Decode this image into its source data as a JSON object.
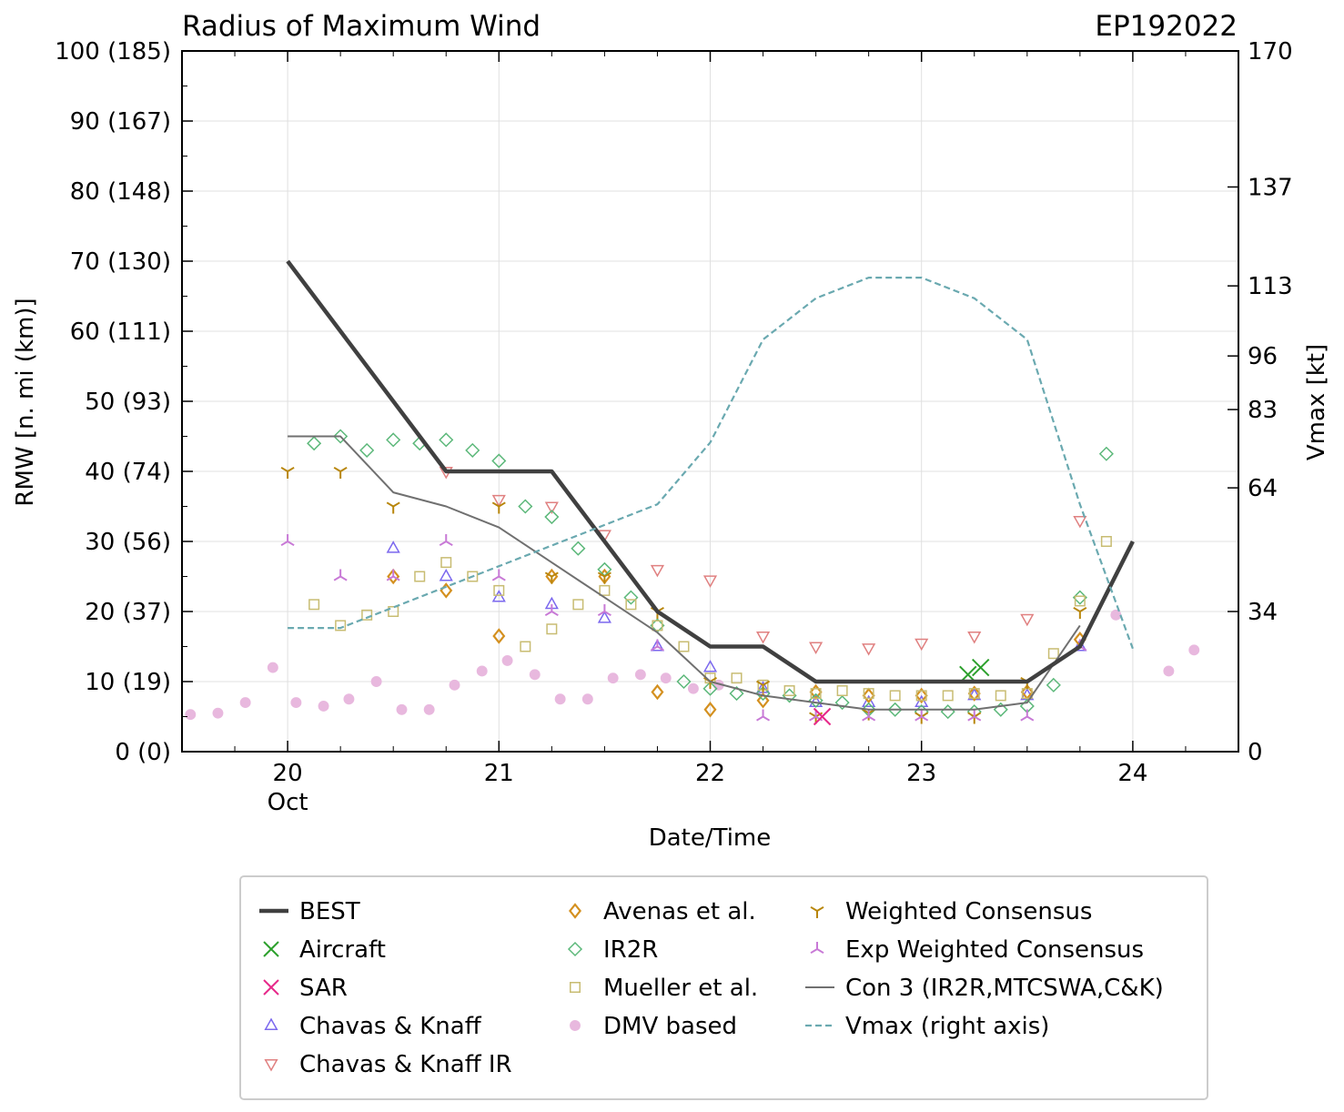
{
  "chart_data": {
    "type": "scatter",
    "title": "Radius of Maximum Wind",
    "storm_id": "EP192022",
    "xlabel": "Date/Time",
    "ylabel": "RMW [n. mi (km)]",
    "y2label": "Vmax [kt]",
    "xlim": [
      19.5,
      24.5
    ],
    "ylim": [
      0,
      100
    ],
    "y2lim": [
      0,
      170
    ],
    "x_ticks": [
      {
        "value": 20,
        "label": "20",
        "sublabel": "Oct"
      },
      {
        "value": 21,
        "label": "21",
        "sublabel": ""
      },
      {
        "value": 22,
        "label": "22",
        "sublabel": ""
      },
      {
        "value": 23,
        "label": "23",
        "sublabel": ""
      },
      {
        "value": 24,
        "label": "24",
        "sublabel": ""
      }
    ],
    "y_ticks": [
      {
        "value": 0,
        "label": "0 (0)"
      },
      {
        "value": 10,
        "label": "10 (19)"
      },
      {
        "value": 20,
        "label": "20 (37)"
      },
      {
        "value": 30,
        "label": "30 (56)"
      },
      {
        "value": 40,
        "label": "40 (74)"
      },
      {
        "value": 50,
        "label": "50 (93)"
      },
      {
        "value": 60,
        "label": "60 (111)"
      },
      {
        "value": 70,
        "label": "70 (130)"
      },
      {
        "value": 80,
        "label": "80 (148)"
      },
      {
        "value": 90,
        "label": "90 (167)"
      },
      {
        "value": 100,
        "label": "100 (185)"
      }
    ],
    "y2_ticks": [
      {
        "value": 0,
        "label": "0"
      },
      {
        "value": 34,
        "label": "34"
      },
      {
        "value": 64,
        "label": "64"
      },
      {
        "value": 83,
        "label": "83"
      },
      {
        "value": 96,
        "label": "96"
      },
      {
        "value": 113,
        "label": "113"
      },
      {
        "value": 137,
        "label": "137"
      },
      {
        "value": 170,
        "label": "170"
      }
    ],
    "grid": true,
    "legend_placement": "below",
    "series": [
      {
        "name": "BEST",
        "marker": "line",
        "color": "#404040",
        "points": [
          [
            20.0,
            70
          ],
          [
            20.75,
            40
          ],
          [
            21.25,
            40
          ],
          [
            21.75,
            20
          ],
          [
            22.0,
            15
          ],
          [
            22.25,
            15
          ],
          [
            22.5,
            10
          ],
          [
            23.5,
            10
          ],
          [
            23.75,
            15
          ],
          [
            24.0,
            30
          ]
        ]
      },
      {
        "name": "Aircraft",
        "marker": "x",
        "color": "#2ca02c",
        "points": [
          [
            23.22,
            11
          ],
          [
            23.28,
            12
          ]
        ]
      },
      {
        "name": "SAR",
        "marker": "x",
        "color": "#e7298a",
        "points": [
          [
            22.53,
            5
          ]
        ]
      },
      {
        "name": "Chavas & Knaff",
        "marker": "triangle-up",
        "color": "#7b68ee",
        "points": [
          [
            20.5,
            29
          ],
          [
            20.75,
            25
          ],
          [
            21.0,
            22
          ],
          [
            21.25,
            21
          ],
          [
            21.5,
            19
          ],
          [
            21.75,
            15
          ],
          [
            22.0,
            12
          ],
          [
            22.25,
            9
          ],
          [
            22.5,
            7
          ],
          [
            22.75,
            7
          ],
          [
            23.0,
            7
          ],
          [
            23.25,
            8
          ],
          [
            23.5,
            8
          ],
          [
            23.75,
            15
          ]
        ]
      },
      {
        "name": "Chavas & Knaff IR",
        "marker": "triangle-down",
        "color": "#e08080",
        "points": [
          [
            20.75,
            40
          ],
          [
            21.0,
            36
          ],
          [
            21.25,
            35
          ],
          [
            21.5,
            31
          ],
          [
            21.75,
            26
          ],
          [
            22.0,
            24.5
          ],
          [
            22.25,
            16.5
          ],
          [
            22.5,
            15
          ],
          [
            22.75,
            14.8
          ],
          [
            23.0,
            15.5
          ],
          [
            23.25,
            16.5
          ],
          [
            23.5,
            19
          ],
          [
            23.75,
            33
          ]
        ]
      },
      {
        "name": "Avenas et al.",
        "marker": "diamond",
        "color": "#d4901f",
        "points": [
          [
            20.5,
            25
          ],
          [
            20.75,
            23
          ],
          [
            21.0,
            16.5
          ],
          [
            21.25,
            25
          ],
          [
            21.5,
            25
          ],
          [
            21.75,
            8.5
          ],
          [
            22.0,
            6
          ],
          [
            22.25,
            7.3
          ],
          [
            22.5,
            8.5
          ],
          [
            22.75,
            8
          ],
          [
            23.0,
            8
          ],
          [
            23.25,
            8.3
          ],
          [
            23.5,
            8.5
          ],
          [
            23.75,
            16
          ]
        ]
      },
      {
        "name": "IR2R",
        "marker": "diamond-open",
        "color": "#5cb87a",
        "points": [
          [
            20.125,
            44
          ],
          [
            20.25,
            45
          ],
          [
            20.375,
            43
          ],
          [
            20.5,
            44.5
          ],
          [
            20.625,
            44
          ],
          [
            20.75,
            44.5
          ],
          [
            20.875,
            43
          ],
          [
            21.0,
            41.5
          ],
          [
            21.125,
            35
          ],
          [
            21.25,
            33.5
          ],
          [
            21.375,
            29
          ],
          [
            21.5,
            26
          ],
          [
            21.625,
            22
          ],
          [
            21.75,
            18
          ],
          [
            21.875,
            10
          ],
          [
            22.0,
            9
          ],
          [
            22.125,
            8.3
          ],
          [
            22.25,
            8.3
          ],
          [
            22.375,
            8
          ],
          [
            22.5,
            7.3
          ],
          [
            22.625,
            7
          ],
          [
            22.75,
            6
          ],
          [
            22.875,
            6
          ],
          [
            23.0,
            5.7
          ],
          [
            23.125,
            5.7
          ],
          [
            23.25,
            5.7
          ],
          [
            23.375,
            6
          ],
          [
            23.5,
            6.5
          ],
          [
            23.625,
            9.5
          ],
          [
            23.75,
            22
          ],
          [
            23.875,
            42.5
          ]
        ]
      },
      {
        "name": "Mueller et al.",
        "marker": "square",
        "color": "#c8bc72",
        "points": [
          [
            20.125,
            21
          ],
          [
            20.25,
            18
          ],
          [
            20.375,
            19.5
          ],
          [
            20.5,
            20
          ],
          [
            20.625,
            25
          ],
          [
            20.75,
            27
          ],
          [
            20.875,
            25
          ],
          [
            21.0,
            23
          ],
          [
            21.125,
            15
          ],
          [
            21.25,
            17.5
          ],
          [
            21.375,
            21
          ],
          [
            21.5,
            23
          ],
          [
            21.625,
            21
          ],
          [
            21.75,
            18
          ],
          [
            21.875,
            15
          ],
          [
            22.0,
            10.5
          ],
          [
            22.125,
            10.5
          ],
          [
            22.25,
            9.5
          ],
          [
            22.375,
            8.7
          ],
          [
            22.5,
            8.3
          ],
          [
            22.625,
            8.7
          ],
          [
            22.75,
            8.3
          ],
          [
            22.875,
            8
          ],
          [
            23.0,
            8
          ],
          [
            23.125,
            8
          ],
          [
            23.25,
            8.3
          ],
          [
            23.375,
            8
          ],
          [
            23.5,
            8.3
          ],
          [
            23.625,
            14
          ],
          [
            23.75,
            21.5
          ],
          [
            23.875,
            30
          ]
        ]
      },
      {
        "name": "DMV based",
        "marker": "circle",
        "color": "#e8b8de",
        "points": [
          [
            19.54,
            5.3
          ],
          [
            19.67,
            5.5
          ],
          [
            19.8,
            7
          ],
          [
            19.93,
            12
          ],
          [
            20.04,
            7
          ],
          [
            20.17,
            6.5
          ],
          [
            20.29,
            7.5
          ],
          [
            20.42,
            10
          ],
          [
            20.54,
            6
          ],
          [
            20.67,
            6
          ],
          [
            20.79,
            9.5
          ],
          [
            20.92,
            11.5
          ],
          [
            21.04,
            13
          ],
          [
            21.17,
            11
          ],
          [
            21.29,
            7.5
          ],
          [
            21.42,
            7.5
          ],
          [
            21.54,
            10.5
          ],
          [
            21.67,
            11
          ],
          [
            21.79,
            10.5
          ],
          [
            21.92,
            9
          ],
          [
            22.04,
            9.5
          ],
          [
            23.92,
            19.5
          ],
          [
            24.17,
            11.5
          ],
          [
            24.29,
            14.5
          ]
        ]
      },
      {
        "name": "Weighted Consensus",
        "marker": "tri-down",
        "color": "#b8860b",
        "points": [
          [
            20.0,
            40
          ],
          [
            20.25,
            40
          ],
          [
            20.5,
            35
          ],
          [
            21.0,
            35
          ],
          [
            21.25,
            25
          ],
          [
            21.5,
            25
          ],
          [
            21.75,
            20
          ],
          [
            22.0,
            10
          ],
          [
            22.25,
            9.5
          ],
          [
            22.5,
            5
          ],
          [
            22.75,
            5.5
          ],
          [
            23.0,
            5
          ],
          [
            23.25,
            5
          ],
          [
            23.5,
            10
          ],
          [
            23.75,
            20
          ]
        ]
      },
      {
        "name": "Exp Weighted Consensus",
        "marker": "tri-up",
        "color": "#c879d6",
        "points": [
          [
            20.0,
            30
          ],
          [
            20.25,
            25
          ],
          [
            20.5,
            25
          ],
          [
            20.75,
            30
          ],
          [
            21.0,
            25
          ],
          [
            21.25,
            20
          ],
          [
            21.5,
            20
          ],
          [
            21.75,
            15
          ],
          [
            22.25,
            5
          ],
          [
            22.5,
            5
          ],
          [
            22.75,
            5
          ],
          [
            23.0,
            5
          ],
          [
            23.25,
            5
          ],
          [
            23.5,
            5
          ],
          [
            23.75,
            15
          ]
        ]
      },
      {
        "name": "Con 3 (IR2R,MTCSWA,C&K)",
        "marker": "line-thin",
        "color": "#707070",
        "points": [
          [
            20.0,
            45
          ],
          [
            20.25,
            45
          ],
          [
            20.5,
            37
          ],
          [
            20.75,
            35
          ],
          [
            21.0,
            32
          ],
          [
            21.25,
            27
          ],
          [
            21.5,
            22
          ],
          [
            21.75,
            17
          ],
          [
            22.0,
            10
          ],
          [
            22.25,
            8
          ],
          [
            22.5,
            7
          ],
          [
            22.75,
            6
          ],
          [
            23.0,
            6
          ],
          [
            23.25,
            6
          ],
          [
            23.5,
            7
          ],
          [
            23.75,
            18
          ]
        ]
      },
      {
        "name": "Vmax (right axis)",
        "marker": "dashed",
        "color": "#6aa9b0",
        "axis": "right",
        "points": [
          [
            20.0,
            30
          ],
          [
            20.25,
            30
          ],
          [
            20.5,
            35
          ],
          [
            20.75,
            40
          ],
          [
            21.0,
            45
          ],
          [
            21.25,
            50
          ],
          [
            21.5,
            55
          ],
          [
            21.75,
            60
          ],
          [
            22.0,
            75
          ],
          [
            22.25,
            100
          ],
          [
            22.5,
            110
          ],
          [
            22.75,
            115
          ],
          [
            23.0,
            115
          ],
          [
            23.25,
            110
          ],
          [
            23.5,
            100
          ],
          [
            23.75,
            60
          ],
          [
            24.0,
            25
          ]
        ]
      }
    ],
    "legend_layout": [
      [
        0,
        1,
        2,
        3,
        4
      ],
      [
        5,
        6,
        7,
        8
      ],
      [
        9,
        10,
        11,
        12
      ]
    ]
  }
}
